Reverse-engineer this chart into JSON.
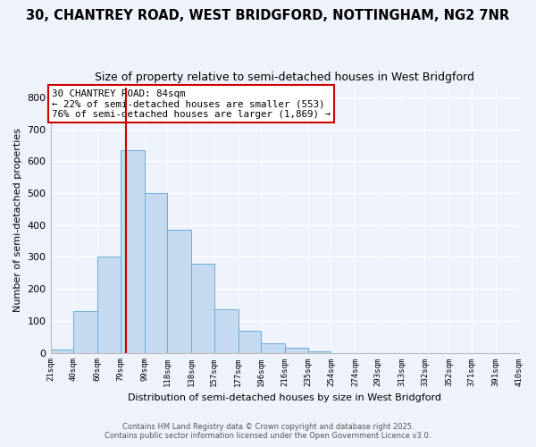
{
  "title": "30, CHANTREY ROAD, WEST BRIDGFORD, NOTTINGHAM, NG2 7NR",
  "subtitle": "Size of property relative to semi-detached houses in West Bridgford",
  "xlabel": "Distribution of semi-detached houses by size in West Bridgford",
  "ylabel": "Number of semi-detached properties",
  "bin_labels": [
    "21sqm",
    "40sqm",
    "60sqm",
    "79sqm",
    "99sqm",
    "118sqm",
    "138sqm",
    "157sqm",
    "177sqm",
    "196sqm",
    "216sqm",
    "235sqm",
    "254sqm",
    "274sqm",
    "293sqm",
    "313sqm",
    "332sqm",
    "352sqm",
    "371sqm",
    "391sqm",
    "410sqm"
  ],
  "bin_edges": [
    21,
    40,
    60,
    79,
    99,
    118,
    138,
    157,
    177,
    196,
    216,
    235,
    254,
    274,
    293,
    313,
    332,
    352,
    371,
    391,
    410
  ],
  "bar_heights": [
    10,
    130,
    300,
    635,
    500,
    385,
    280,
    135,
    70,
    30,
    15,
    5,
    0,
    0,
    0,
    0,
    0,
    0,
    0,
    0
  ],
  "bar_color": "#c5d9f1",
  "bar_edge_color": "#6baed6",
  "property_value": 84,
  "vline_color": "#cc0000",
  "annotation_line1": "30 CHANTREY ROAD: 84sqm",
  "annotation_line2": "← 22% of semi-detached houses are smaller (553)",
  "annotation_line3": "76% of semi-detached houses are larger (1,869) →",
  "annotation_box_edge_color": "#cc0000",
  "ylim": [
    0,
    830
  ],
  "yticks": [
    0,
    100,
    200,
    300,
    400,
    500,
    600,
    700,
    800
  ],
  "footer1": "Contains HM Land Registry data © Crown copyright and database right 2025.",
  "footer2": "Contains public sector information licensed under the Open Government Licence v3.0.",
  "background_color": "#eef2fb",
  "title_fontsize": 10.5,
  "subtitle_fontsize": 9
}
